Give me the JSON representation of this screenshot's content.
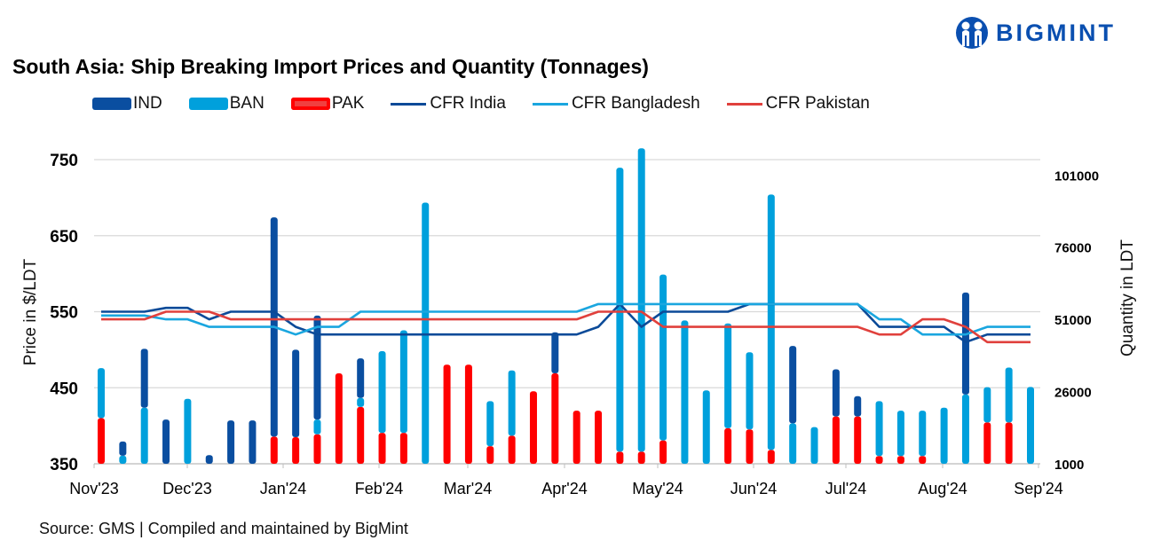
{
  "title": "South Asia: Ship Breaking Import Prices and Quantity (Tonnages)",
  "source": "Source: GMS | Compiled and maintained by BigMint",
  "logo": {
    "text": "BIGMINT",
    "color": "#0a4fb0"
  },
  "chart_data": {
    "type": "bar+line",
    "title": "South Asia: Ship Breaking Import Prices and Quantity (Tonnages)",
    "ylabel": "Price in $/LDT",
    "y2label": "Quantity in LDT",
    "ylim": [
      350,
      750
    ],
    "y2lim": [
      1000,
      106300
    ],
    "yticks": [
      "750",
      "650",
      "550",
      "450",
      "350"
    ],
    "y2ticks": [
      "101000",
      "76000",
      "51000",
      "26000",
      "1000"
    ],
    "x_tick_labels": [
      "Nov'23",
      "Dec'23",
      "Jan'24",
      "Feb'24",
      "Mar'24",
      "Apr'24",
      "May'24",
      "Jun'24",
      "Jul'24",
      "Aug'24",
      "Sep'24"
    ],
    "grid": true,
    "legend_position": "top",
    "bar_stacking": "stacked",
    "bar_series": [
      {
        "name": "PAK",
        "color": "#ff0000",
        "values": [
          15800,
          0,
          0,
          0,
          0,
          0,
          0,
          0,
          9400,
          9200,
          10200,
          31300,
          19700,
          10700,
          10700,
          0,
          34300,
          34300,
          6100,
          9700,
          25100,
          31300,
          18400,
          18400,
          4200,
          4200,
          8100,
          0,
          0,
          12300,
          11900,
          4800,
          0,
          0,
          16400,
          16400,
          2700,
          2700,
          2700,
          0,
          0,
          14300,
          14300,
          0
        ]
      },
      {
        "name": "BAN",
        "color": "#00a0dc",
        "values": [
          17300,
          2800,
          19400,
          0,
          22500,
          0,
          0,
          0,
          0,
          0,
          5100,
          0,
          3100,
          28300,
          35500,
          90400,
          0,
          0,
          15600,
          22600,
          0,
          0,
          0,
          0,
          98300,
          105000,
          57400,
          49600,
          25400,
          36300,
          26700,
          88400,
          14000,
          12700,
          0,
          0,
          19000,
          15700,
          15700,
          19400,
          24000,
          12200,
          19000,
          26600
        ]
      },
      {
        "name": "IND",
        "color": "#0a4ea0",
        "values": [
          0,
          4900,
          20400,
          15300,
          0,
          3000,
          15000,
          15000,
          75900,
          30300,
          36000,
          0,
          13700,
          0,
          0,
          0,
          0,
          0,
          0,
          0,
          0,
          14200,
          0,
          0,
          0,
          0,
          0,
          0,
          0,
          0,
          0,
          0,
          26800,
          0,
          16300,
          7000,
          0,
          0,
          0,
          0,
          35300,
          0,
          0,
          0
        ]
      }
    ],
    "line_series": [
      {
        "name": "CFR India",
        "color": "#0b4a98",
        "values": [
          550,
          550,
          550,
          555,
          555,
          540,
          550,
          550,
          550,
          530,
          520,
          520,
          520,
          520,
          520,
          520,
          520,
          520,
          520,
          520,
          520,
          520,
          520,
          530,
          560,
          530,
          550,
          550,
          550,
          550,
          560,
          560,
          560,
          560,
          560,
          560,
          530,
          530,
          530,
          530,
          510,
          520,
          520,
          520
        ]
      },
      {
        "name": "CFR Bangladesh",
        "color": "#1aa6df",
        "values": [
          545,
          545,
          545,
          540,
          540,
          530,
          530,
          530,
          530,
          520,
          530,
          530,
          550,
          550,
          550,
          550,
          550,
          550,
          550,
          550,
          550,
          550,
          550,
          560,
          560,
          560,
          560,
          560,
          560,
          560,
          560,
          560,
          560,
          560,
          560,
          560,
          540,
          540,
          520,
          520,
          520,
          530,
          530,
          530
        ]
      },
      {
        "name": "CFR Pakistan",
        "color": "#e0403c",
        "values": [
          540,
          540,
          540,
          550,
          550,
          550,
          540,
          540,
          540,
          540,
          540,
          540,
          540,
          540,
          540,
          540,
          540,
          540,
          540,
          540,
          540,
          540,
          540,
          550,
          550,
          550,
          530,
          530,
          530,
          530,
          530,
          530,
          530,
          530,
          530,
          530,
          520,
          520,
          540,
          540,
          530,
          510,
          510,
          510
        ]
      }
    ]
  }
}
